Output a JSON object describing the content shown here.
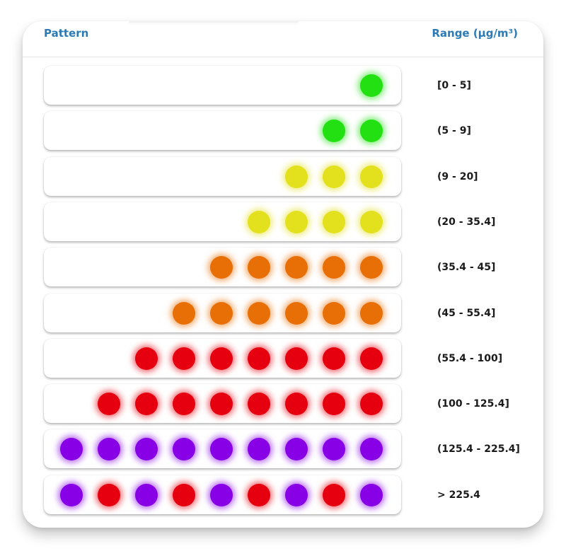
{
  "header": {
    "pattern_label": "Pattern",
    "range_label": "Range (µg/m³)"
  },
  "colors": {
    "green": "#22e012",
    "yellow": "#e3e01e",
    "orange": "#e86f06",
    "red": "#e6000f",
    "purple": "#8700e6"
  },
  "rows": [
    {
      "range": "[0 - 5]",
      "dots": [
        "green"
      ]
    },
    {
      "range": "(5 - 9]",
      "dots": [
        "green",
        "green"
      ]
    },
    {
      "range": "(9 - 20]",
      "dots": [
        "yellow",
        "yellow",
        "yellow"
      ]
    },
    {
      "range": "(20 - 35.4]",
      "dots": [
        "yellow",
        "yellow",
        "yellow",
        "yellow"
      ]
    },
    {
      "range": "(35.4 - 45]",
      "dots": [
        "orange",
        "orange",
        "orange",
        "orange",
        "orange"
      ]
    },
    {
      "range": "(45 - 55.4]",
      "dots": [
        "orange",
        "orange",
        "orange",
        "orange",
        "orange",
        "orange"
      ]
    },
    {
      "range": "(55.4 - 100]",
      "dots": [
        "red",
        "red",
        "red",
        "red",
        "red",
        "red",
        "red"
      ]
    },
    {
      "range": "(100 - 125.4]",
      "dots": [
        "red",
        "red",
        "red",
        "red",
        "red",
        "red",
        "red",
        "red"
      ]
    },
    {
      "range": "(125.4 - 225.4]",
      "dots": [
        "purple",
        "purple",
        "purple",
        "purple",
        "purple",
        "purple",
        "purple",
        "purple",
        "purple"
      ]
    },
    {
      "range": "> 225.4",
      "dots": [
        "purple",
        "red",
        "purple",
        "red",
        "purple",
        "red",
        "purple",
        "red",
        "purple"
      ]
    }
  ]
}
